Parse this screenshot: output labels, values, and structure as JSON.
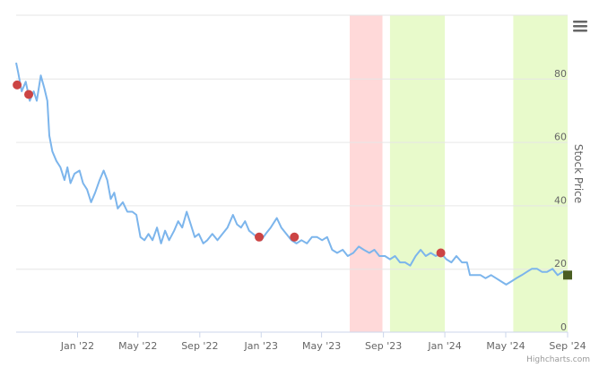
{
  "chart_data": {
    "type": "line",
    "title": "",
    "xlabel": "",
    "ylabel": "Stock Price",
    "ylim": [
      0,
      100
    ],
    "yticks": [
      0,
      20,
      40,
      60,
      80
    ],
    "xticks": [
      "Jan '22",
      "May '22",
      "Sep '22",
      "Jan '23",
      "May '23",
      "Sep '23",
      "Jan '24",
      "May '24",
      "Sep '24"
    ],
    "xrange": [
      "2021-09-01",
      "2024-09-01"
    ],
    "grid": true,
    "legend": "none",
    "series": [
      {
        "color": "#7cb5ec",
        "points": [
          [
            "2021-09-01",
            85
          ],
          [
            "2021-09-05",
            82
          ],
          [
            "2021-09-12",
            76
          ],
          [
            "2021-09-20",
            79
          ],
          [
            "2021-09-28",
            73
          ],
          [
            "2021-10-06",
            76
          ],
          [
            "2021-10-12",
            73
          ],
          [
            "2021-10-20",
            81
          ],
          [
            "2021-10-27",
            77
          ],
          [
            "2021-11-02",
            73
          ],
          [
            "2021-11-06",
            62
          ],
          [
            "2021-11-12",
            57
          ],
          [
            "2021-11-20",
            54
          ],
          [
            "2021-11-28",
            52
          ],
          [
            "2021-12-06",
            48
          ],
          [
            "2021-12-12",
            52
          ],
          [
            "2021-12-18",
            47
          ],
          [
            "2021-12-26",
            50
          ],
          [
            "2022-01-05",
            51
          ],
          [
            "2022-01-12",
            47
          ],
          [
            "2022-01-20",
            45
          ],
          [
            "2022-01-28",
            41
          ],
          [
            "2022-02-05",
            44
          ],
          [
            "2022-02-14",
            48
          ],
          [
            "2022-02-22",
            51
          ],
          [
            "2022-03-01",
            48
          ],
          [
            "2022-03-08",
            42
          ],
          [
            "2022-03-15",
            44
          ],
          [
            "2022-03-22",
            39
          ],
          [
            "2022-04-01",
            41
          ],
          [
            "2022-04-10",
            38
          ],
          [
            "2022-04-20",
            38
          ],
          [
            "2022-04-28",
            37
          ],
          [
            "2022-05-06",
            30
          ],
          [
            "2022-05-14",
            29
          ],
          [
            "2022-05-22",
            31
          ],
          [
            "2022-05-30",
            29
          ],
          [
            "2022-06-08",
            33
          ],
          [
            "2022-06-16",
            28
          ],
          [
            "2022-06-24",
            32
          ],
          [
            "2022-07-02",
            29
          ],
          [
            "2022-07-12",
            32
          ],
          [
            "2022-07-20",
            35
          ],
          [
            "2022-07-28",
            33
          ],
          [
            "2022-08-06",
            38
          ],
          [
            "2022-08-14",
            34
          ],
          [
            "2022-08-22",
            30
          ],
          [
            "2022-08-30",
            31
          ],
          [
            "2022-09-08",
            28
          ],
          [
            "2022-09-16",
            29
          ],
          [
            "2022-09-26",
            31
          ],
          [
            "2022-10-06",
            29
          ],
          [
            "2022-10-16",
            31
          ],
          [
            "2022-10-26",
            33
          ],
          [
            "2022-11-06",
            37
          ],
          [
            "2022-11-14",
            34
          ],
          [
            "2022-11-22",
            33
          ],
          [
            "2022-11-30",
            35
          ],
          [
            "2022-12-08",
            32
          ],
          [
            "2022-12-16",
            31
          ],
          [
            "2022-12-24",
            30
          ],
          [
            "2023-01-01",
            29
          ],
          [
            "2023-01-10",
            31
          ],
          [
            "2023-01-20",
            33
          ],
          [
            "2023-02-01",
            36
          ],
          [
            "2023-02-10",
            33
          ],
          [
            "2023-02-20",
            31
          ],
          [
            "2023-03-02",
            29
          ],
          [
            "2023-03-12",
            28
          ],
          [
            "2023-03-22",
            29
          ],
          [
            "2023-04-02",
            28
          ],
          [
            "2023-04-12",
            30
          ],
          [
            "2023-04-22",
            30
          ],
          [
            "2023-05-02",
            29
          ],
          [
            "2023-05-12",
            30
          ],
          [
            "2023-05-22",
            26
          ],
          [
            "2023-06-01",
            25
          ],
          [
            "2023-06-12",
            26
          ],
          [
            "2023-06-22",
            24
          ],
          [
            "2023-07-03",
            25
          ],
          [
            "2023-07-14",
            27
          ],
          [
            "2023-07-24",
            26
          ],
          [
            "2023-08-04",
            25
          ],
          [
            "2023-08-14",
            26
          ],
          [
            "2023-08-24",
            24
          ],
          [
            "2023-09-04",
            24
          ],
          [
            "2023-09-14",
            23
          ],
          [
            "2023-09-24",
            24
          ],
          [
            "2023-10-04",
            22
          ],
          [
            "2023-10-14",
            22
          ],
          [
            "2023-10-24",
            21
          ],
          [
            "2023-11-04",
            24
          ],
          [
            "2023-11-14",
            26
          ],
          [
            "2023-11-24",
            24
          ],
          [
            "2023-12-04",
            25
          ],
          [
            "2023-12-14",
            24
          ],
          [
            "2023-12-24",
            25
          ],
          [
            "2024-01-04",
            23
          ],
          [
            "2024-01-14",
            22
          ],
          [
            "2024-01-24",
            24
          ],
          [
            "2024-02-04",
            22
          ],
          [
            "2024-02-14",
            22
          ],
          [
            "2024-02-20",
            18
          ],
          [
            "2024-03-01",
            18
          ],
          [
            "2024-03-12",
            18
          ],
          [
            "2024-03-22",
            17
          ],
          [
            "2024-04-02",
            18
          ],
          [
            "2024-04-12",
            17
          ],
          [
            "2024-04-22",
            16
          ],
          [
            "2024-05-02",
            15
          ],
          [
            "2024-05-12",
            16
          ],
          [
            "2024-05-22",
            17
          ],
          [
            "2024-06-02",
            18
          ],
          [
            "2024-06-12",
            19
          ],
          [
            "2024-06-22",
            20
          ],
          [
            "2024-07-02",
            20
          ],
          [
            "2024-07-12",
            19
          ],
          [
            "2024-07-22",
            19
          ],
          [
            "2024-08-02",
            20
          ],
          [
            "2024-08-12",
            18
          ],
          [
            "2024-08-22",
            19
          ],
          [
            "2024-09-01",
            18
          ]
        ]
      }
    ],
    "bands": [
      {
        "from": "2023-06-26",
        "to": "2023-08-30",
        "color": "#ffd9d9"
      },
      {
        "from": "2023-09-14",
        "to": "2024-01-01",
        "color": "#e8facb"
      },
      {
        "from": "2024-05-16",
        "to": "2024-09-01",
        "color": "#e8facb"
      }
    ],
    "markers": [
      {
        "x": "2021-09-03",
        "y": 78,
        "color": "#cc4444",
        "shape": "circle"
      },
      {
        "x": "2021-09-26",
        "y": 75,
        "color": "#cc4444",
        "shape": "circle"
      },
      {
        "x": "2022-12-28",
        "y": 30,
        "color": "#cc4444",
        "shape": "circle"
      },
      {
        "x": "2023-03-08",
        "y": 30,
        "color": "#cc4444",
        "shape": "circle"
      },
      {
        "x": "2023-12-24",
        "y": 25,
        "color": "#cc4444",
        "shape": "circle"
      },
      {
        "x": "2024-09-01",
        "y": 18,
        "color": "#4a5e23",
        "shape": "square"
      }
    ]
  },
  "credit": "Highcharts.com",
  "menu_icon": "hamburger-menu-icon"
}
